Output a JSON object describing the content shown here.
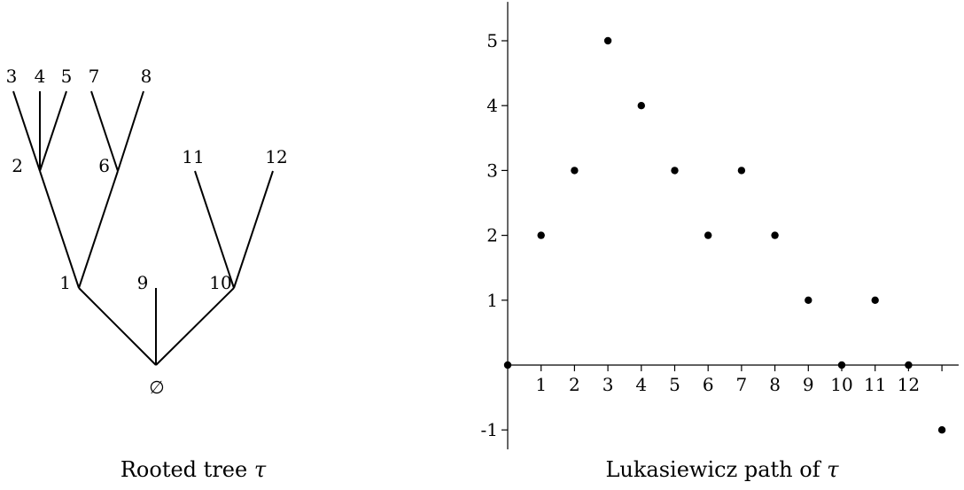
{
  "tree": {
    "caption": "Rooted tree",
    "caption_symbol": "τ",
    "root_label": "∅",
    "nodes": [
      {
        "id": "root",
        "label": "∅"
      },
      {
        "id": "1",
        "label": "1",
        "parent": "root"
      },
      {
        "id": "2",
        "label": "2",
        "parent": "1"
      },
      {
        "id": "3",
        "label": "3",
        "parent": "2"
      },
      {
        "id": "4",
        "label": "4",
        "parent": "2"
      },
      {
        "id": "5",
        "label": "5",
        "parent": "2"
      },
      {
        "id": "6",
        "label": "6",
        "parent": "1"
      },
      {
        "id": "7",
        "label": "7",
        "parent": "6"
      },
      {
        "id": "8",
        "label": "8",
        "parent": "6"
      },
      {
        "id": "9",
        "label": "9",
        "parent": "root"
      },
      {
        "id": "10",
        "label": "10",
        "parent": "root"
      },
      {
        "id": "11",
        "label": "11",
        "parent": "10"
      },
      {
        "id": "12",
        "label": "12",
        "parent": "10"
      }
    ]
  },
  "path_plot": {
    "caption": "Lukasiewicz path of",
    "caption_symbol": "τ",
    "chart_data": {
      "type": "scatter",
      "x": [
        0,
        1,
        2,
        3,
        4,
        5,
        6,
        7,
        8,
        9,
        10,
        11,
        12,
        13
      ],
      "y": [
        0,
        2,
        3,
        5,
        4,
        3,
        2,
        3,
        2,
        1,
        0,
        1,
        0,
        -1
      ],
      "x_ticks": [
        "1",
        "2",
        "3",
        "4",
        "5",
        "6",
        "7",
        "8",
        "9",
        "10",
        "11",
        "12"
      ],
      "y_ticks": [
        "-1",
        "1",
        "2",
        "3",
        "4",
        "5"
      ],
      "xlim": [
        0,
        13.5
      ],
      "ylim": [
        -1.3,
        5.6
      ],
      "grid": false
    }
  }
}
